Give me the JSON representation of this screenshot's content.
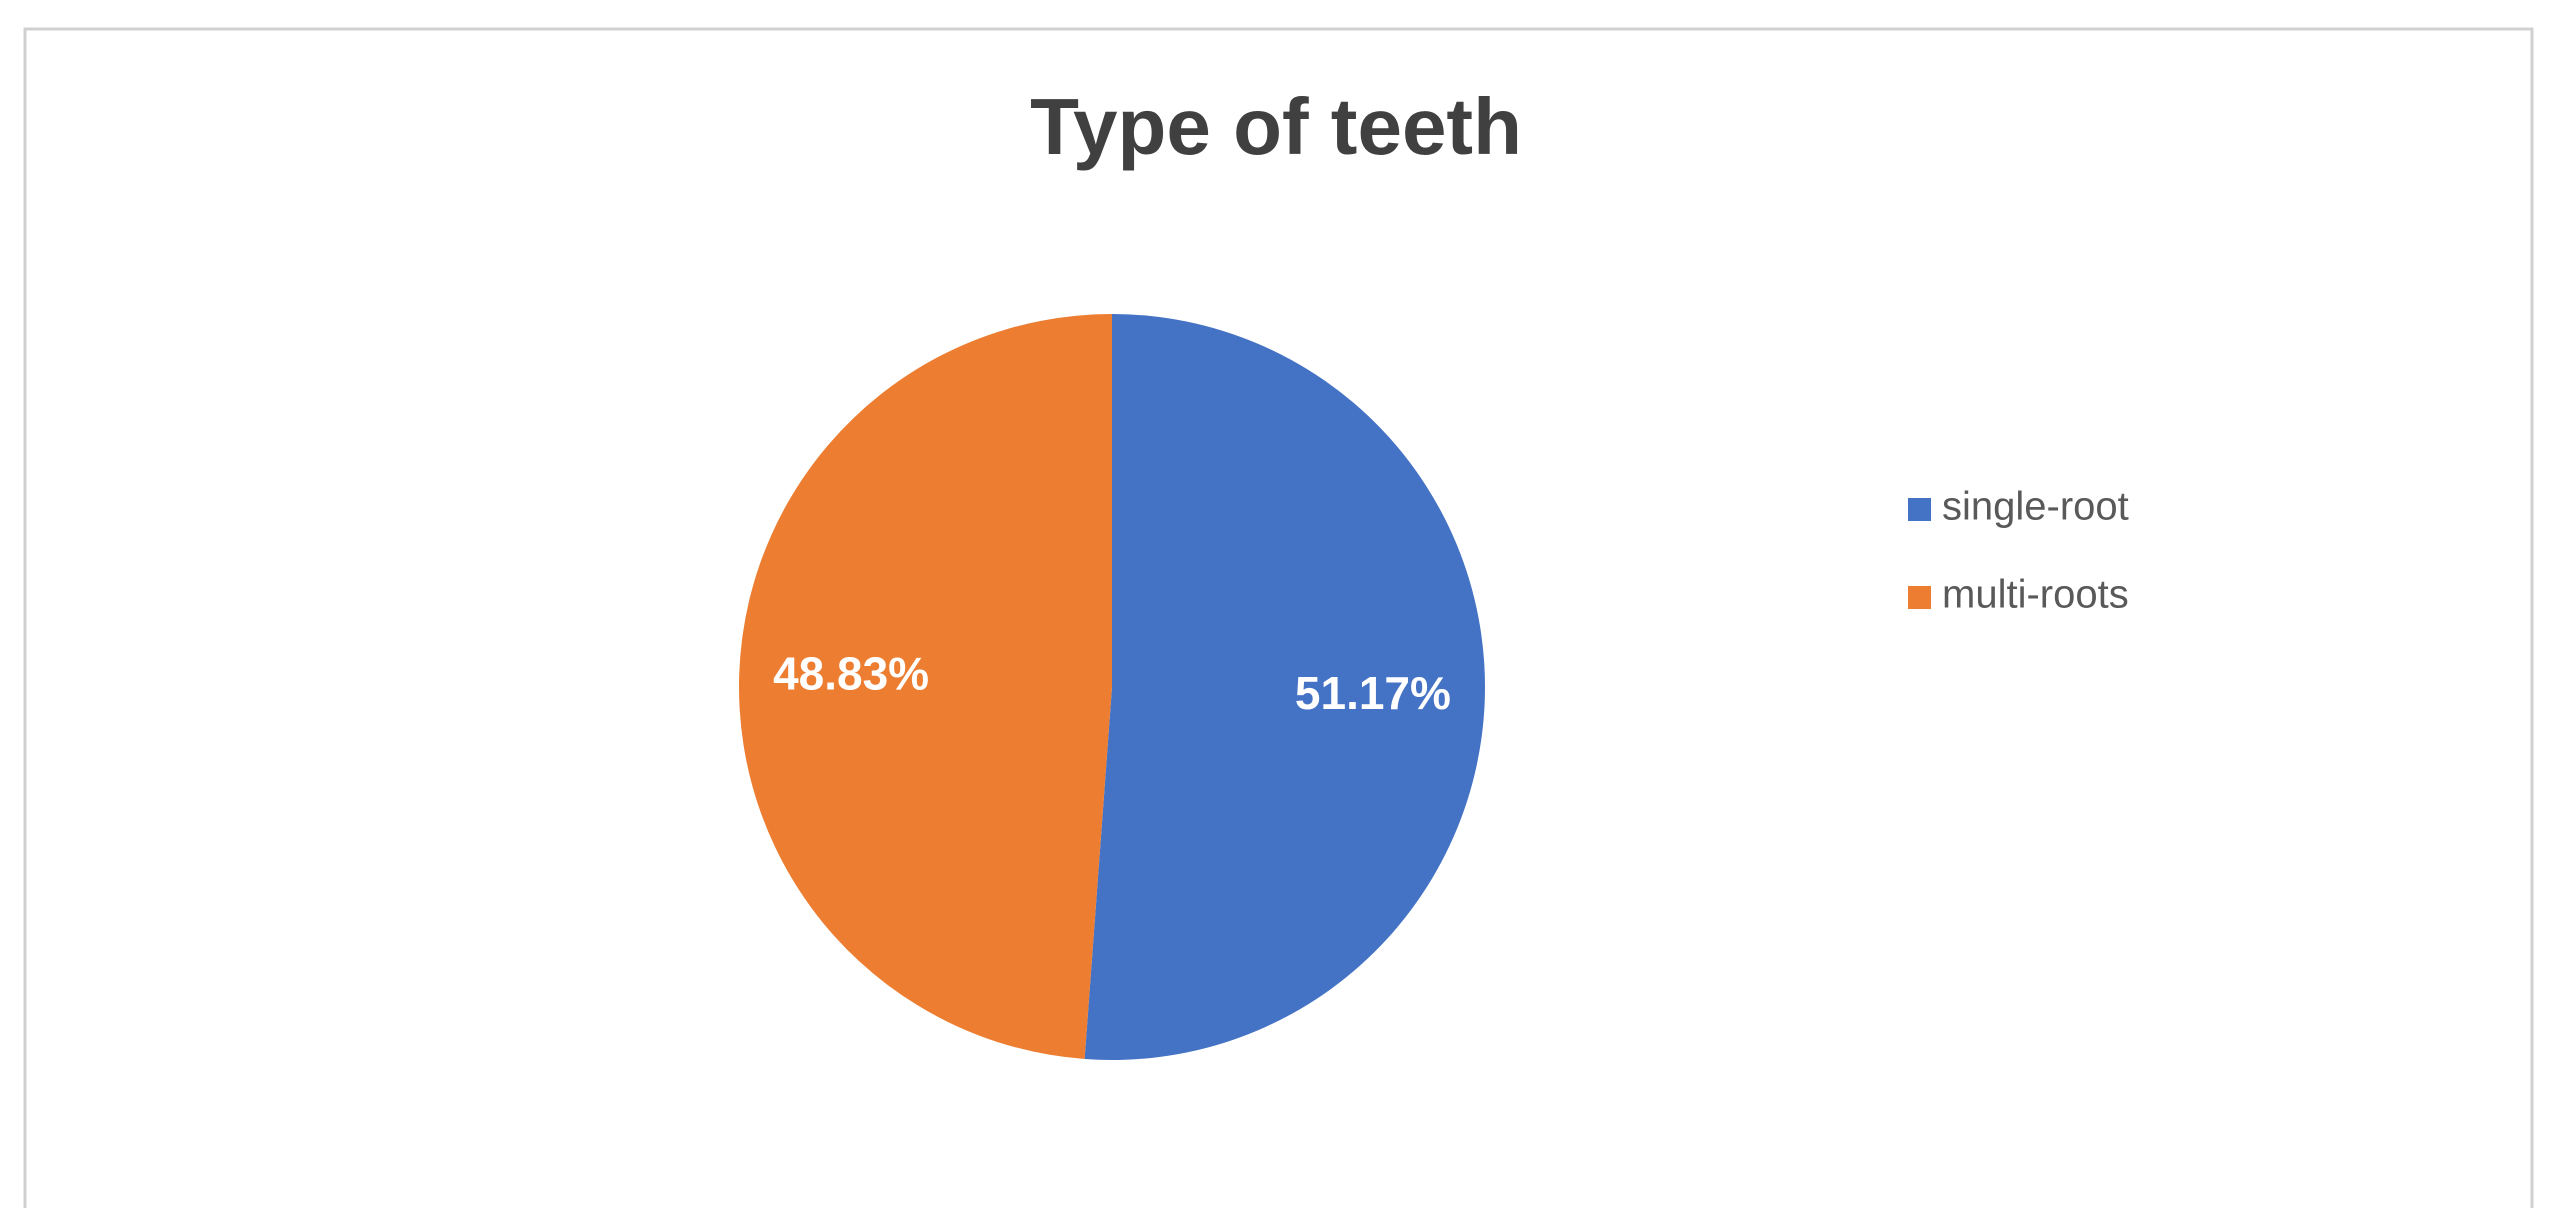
{
  "chart_data": {
    "type": "pie",
    "title": "Type of teeth",
    "categories": [
      "single-root",
      "multi-roots"
    ],
    "values": [
      51.17,
      48.83
    ],
    "value_labels": [
      "51.17%",
      "48.83%"
    ],
    "colors": [
      "#4472c4",
      "#ed7d31"
    ],
    "legend": "right"
  }
}
